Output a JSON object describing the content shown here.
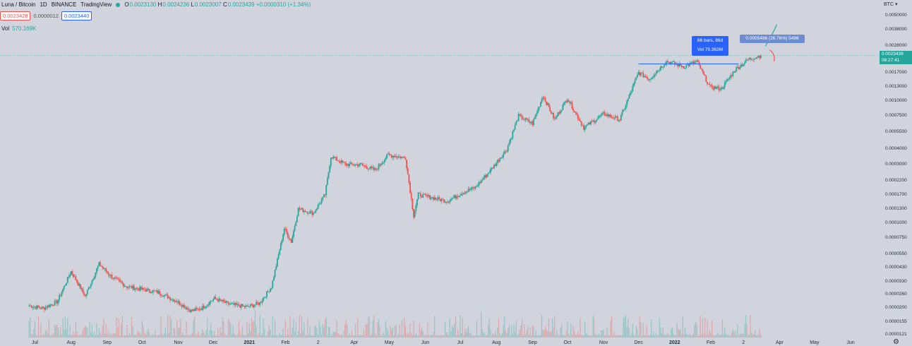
{
  "legend": {
    "symbol": "Luna / Bitcoin",
    "interval": "1D",
    "exchange": "BINANCE",
    "source": "TradingView",
    "o_label": "O",
    "o": "0.0023130",
    "h_label": "H",
    "h": "0.0024236",
    "l_label": "L",
    "l": "0.0023007",
    "c_label": "C",
    "c": "0.0023439",
    "change": "+0.0000310 (+1.34%)"
  },
  "quote": {
    "sell": "0.0023428",
    "spread": "0.0000012",
    "buy": "0.0023440"
  },
  "volume": {
    "label": "Vol",
    "value": "570.169K"
  },
  "price_scale": {
    "currency": "BTC",
    "ticks": [
      "0.0050000",
      "0.0038000",
      "0.0028000",
      "0.0017000",
      "0.0013000",
      "0.0010000",
      "0.0007500",
      "0.0005500",
      "0.0004000",
      "0.0003000",
      "0.0002200",
      "0.0001700",
      "0.0001300",
      "0.0001000",
      "0.0000750",
      "0.0000550",
      "0.0000430",
      "0.0000330",
      "0.0000260",
      "0.0000200",
      "0.0000155",
      "0.0000121"
    ],
    "last_price": "0.0023439",
    "countdown": "06:27:41"
  },
  "time_axis": [
    "Jul",
    "Aug",
    "Sep",
    "Oct",
    "Nov",
    "Dec",
    "2021",
    "Feb",
    "2",
    "Apr",
    "May",
    "Jun",
    "Jul",
    "Aug",
    "Sep",
    "Oct",
    "Nov",
    "Dec",
    "2022",
    "Feb",
    "2",
    "Apr",
    "May",
    "Jun"
  ],
  "measure_tool": {
    "line1": "86 bars, 86d",
    "line2": "Vol 79.363M"
  },
  "callout": {
    "text": "0.0005496 (26.76%) 5496"
  },
  "colors": {
    "up": "#26a69a",
    "down": "#ef5350",
    "background": "#d1d4dc",
    "accent": "#2962ff"
  },
  "chart_data": {
    "type": "candlestick",
    "title": "Luna / Bitcoin · 1D · BINANCE",
    "scale": "log",
    "ylim": [
      1.15e-05,
      0.006
    ],
    "x": [
      "2020-06-26",
      "2020-07-08",
      "2020-07-20",
      "2020-08-01",
      "2020-08-06",
      "2020-08-13",
      "2020-08-25",
      "2020-09-05",
      "2020-09-18",
      "2020-10-01",
      "2020-10-15",
      "2020-10-30",
      "2020-11-12",
      "2020-11-21",
      "2020-12-02",
      "2020-12-15",
      "2020-12-30",
      "2021-01-10",
      "2021-01-20",
      "2021-01-31",
      "2021-02-06",
      "2021-02-12",
      "2021-02-25",
      "2021-03-07",
      "2021-03-12",
      "2021-03-25",
      "2021-04-06",
      "2021-04-19",
      "2021-04-30",
      "2021-05-15",
      "2021-05-22",
      "2021-05-26",
      "2021-06-08",
      "2021-06-20",
      "2021-07-02",
      "2021-07-14",
      "2021-07-27",
      "2021-08-10",
      "2021-08-20",
      "2021-09-01",
      "2021-09-10",
      "2021-09-20",
      "2021-10-01",
      "2021-10-15",
      "2021-11-01",
      "2021-11-15",
      "2021-12-01",
      "2021-12-10",
      "2021-12-25",
      "2022-01-09",
      "2022-01-20",
      "2022-01-31",
      "2022-02-10",
      "2022-02-22",
      "2022-03-06",
      "2022-03-16"
    ],
    "close": [
      2.1e-05,
      2e-05,
      2.25e-05,
      4e-05,
      3.3e-05,
      2.5e-05,
      4.6e-05,
      3.6e-05,
      3e-05,
      2.85e-05,
      2.7e-05,
      2.3e-05,
      1.9e-05,
      2e-05,
      2.4e-05,
      2.15e-05,
      2.05e-05,
      2.2e-05,
      3e-05,
      9e-05,
      7e-05,
      0.00013,
      0.00012,
      0.00017,
      0.00035,
      0.0003,
      0.0003,
      0.00027,
      0.00036,
      0.00034,
      0.000115,
      0.00017,
      0.00016,
      0.00015,
      0.000175,
      0.000195,
      0.00027,
      0.0004,
      0.00075,
      0.00065,
      0.0011,
      0.0007,
      0.00105,
      0.0006,
      0.00078,
      0.0007,
      0.0017,
      0.0015,
      0.0021,
      0.0019,
      0.0021,
      0.0013,
      0.00125,
      0.0018,
      0.0022,
      0.0023439
    ],
    "volume_note": "Vol 570.169K"
  }
}
